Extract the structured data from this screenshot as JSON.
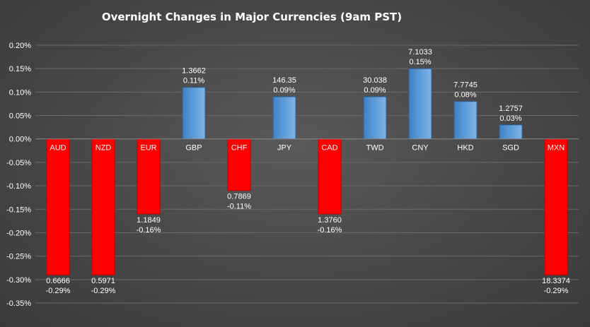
{
  "chart_data": {
    "type": "bar",
    "title": "Overnight Changes in Major Currencies (9am PST)",
    "categories": [
      "AUD",
      "NZD",
      "EUR",
      "GBP",
      "CHF",
      "JPY",
      "CAD",
      "TWD",
      "CNY",
      "HKD",
      "SGD",
      "MXN"
    ],
    "values": [
      -0.29,
      -0.29,
      -0.16,
      0.11,
      -0.11,
      0.09,
      -0.16,
      0.09,
      0.15,
      0.08,
      0.03,
      -0.29
    ],
    "value_labels": [
      "-0.29%",
      "-0.29%",
      "-0.16%",
      "0.11%",
      "-0.11%",
      "0.09%",
      "-0.16%",
      "0.09%",
      "0.15%",
      "0.08%",
      "0.03%",
      "-0.29%"
    ],
    "rates": [
      "0.6666",
      "0.5971",
      "1.1849",
      "1.3662",
      "0.7869",
      "146.35",
      "1.3760",
      "30.038",
      "7.1033",
      "7.7745",
      "1.2757",
      "18.3374"
    ],
    "ylim": [
      -0.35,
      0.2
    ],
    "yticks": [
      "0.20%",
      "0.15%",
      "0.10%",
      "0.05%",
      "0.00%",
      "-0.05%",
      "-0.10%",
      "-0.15%",
      "-0.20%",
      "-0.25%",
      "-0.30%",
      "-0.35%"
    ],
    "ytick_values": [
      0.2,
      0.15,
      0.1,
      0.05,
      0,
      -0.05,
      -0.1,
      -0.15,
      -0.2,
      -0.25,
      -0.3,
      -0.35
    ],
    "grid": true,
    "legend": "none",
    "colors": {
      "positive": "#5b9bd5",
      "negative": "#ff0000"
    }
  }
}
